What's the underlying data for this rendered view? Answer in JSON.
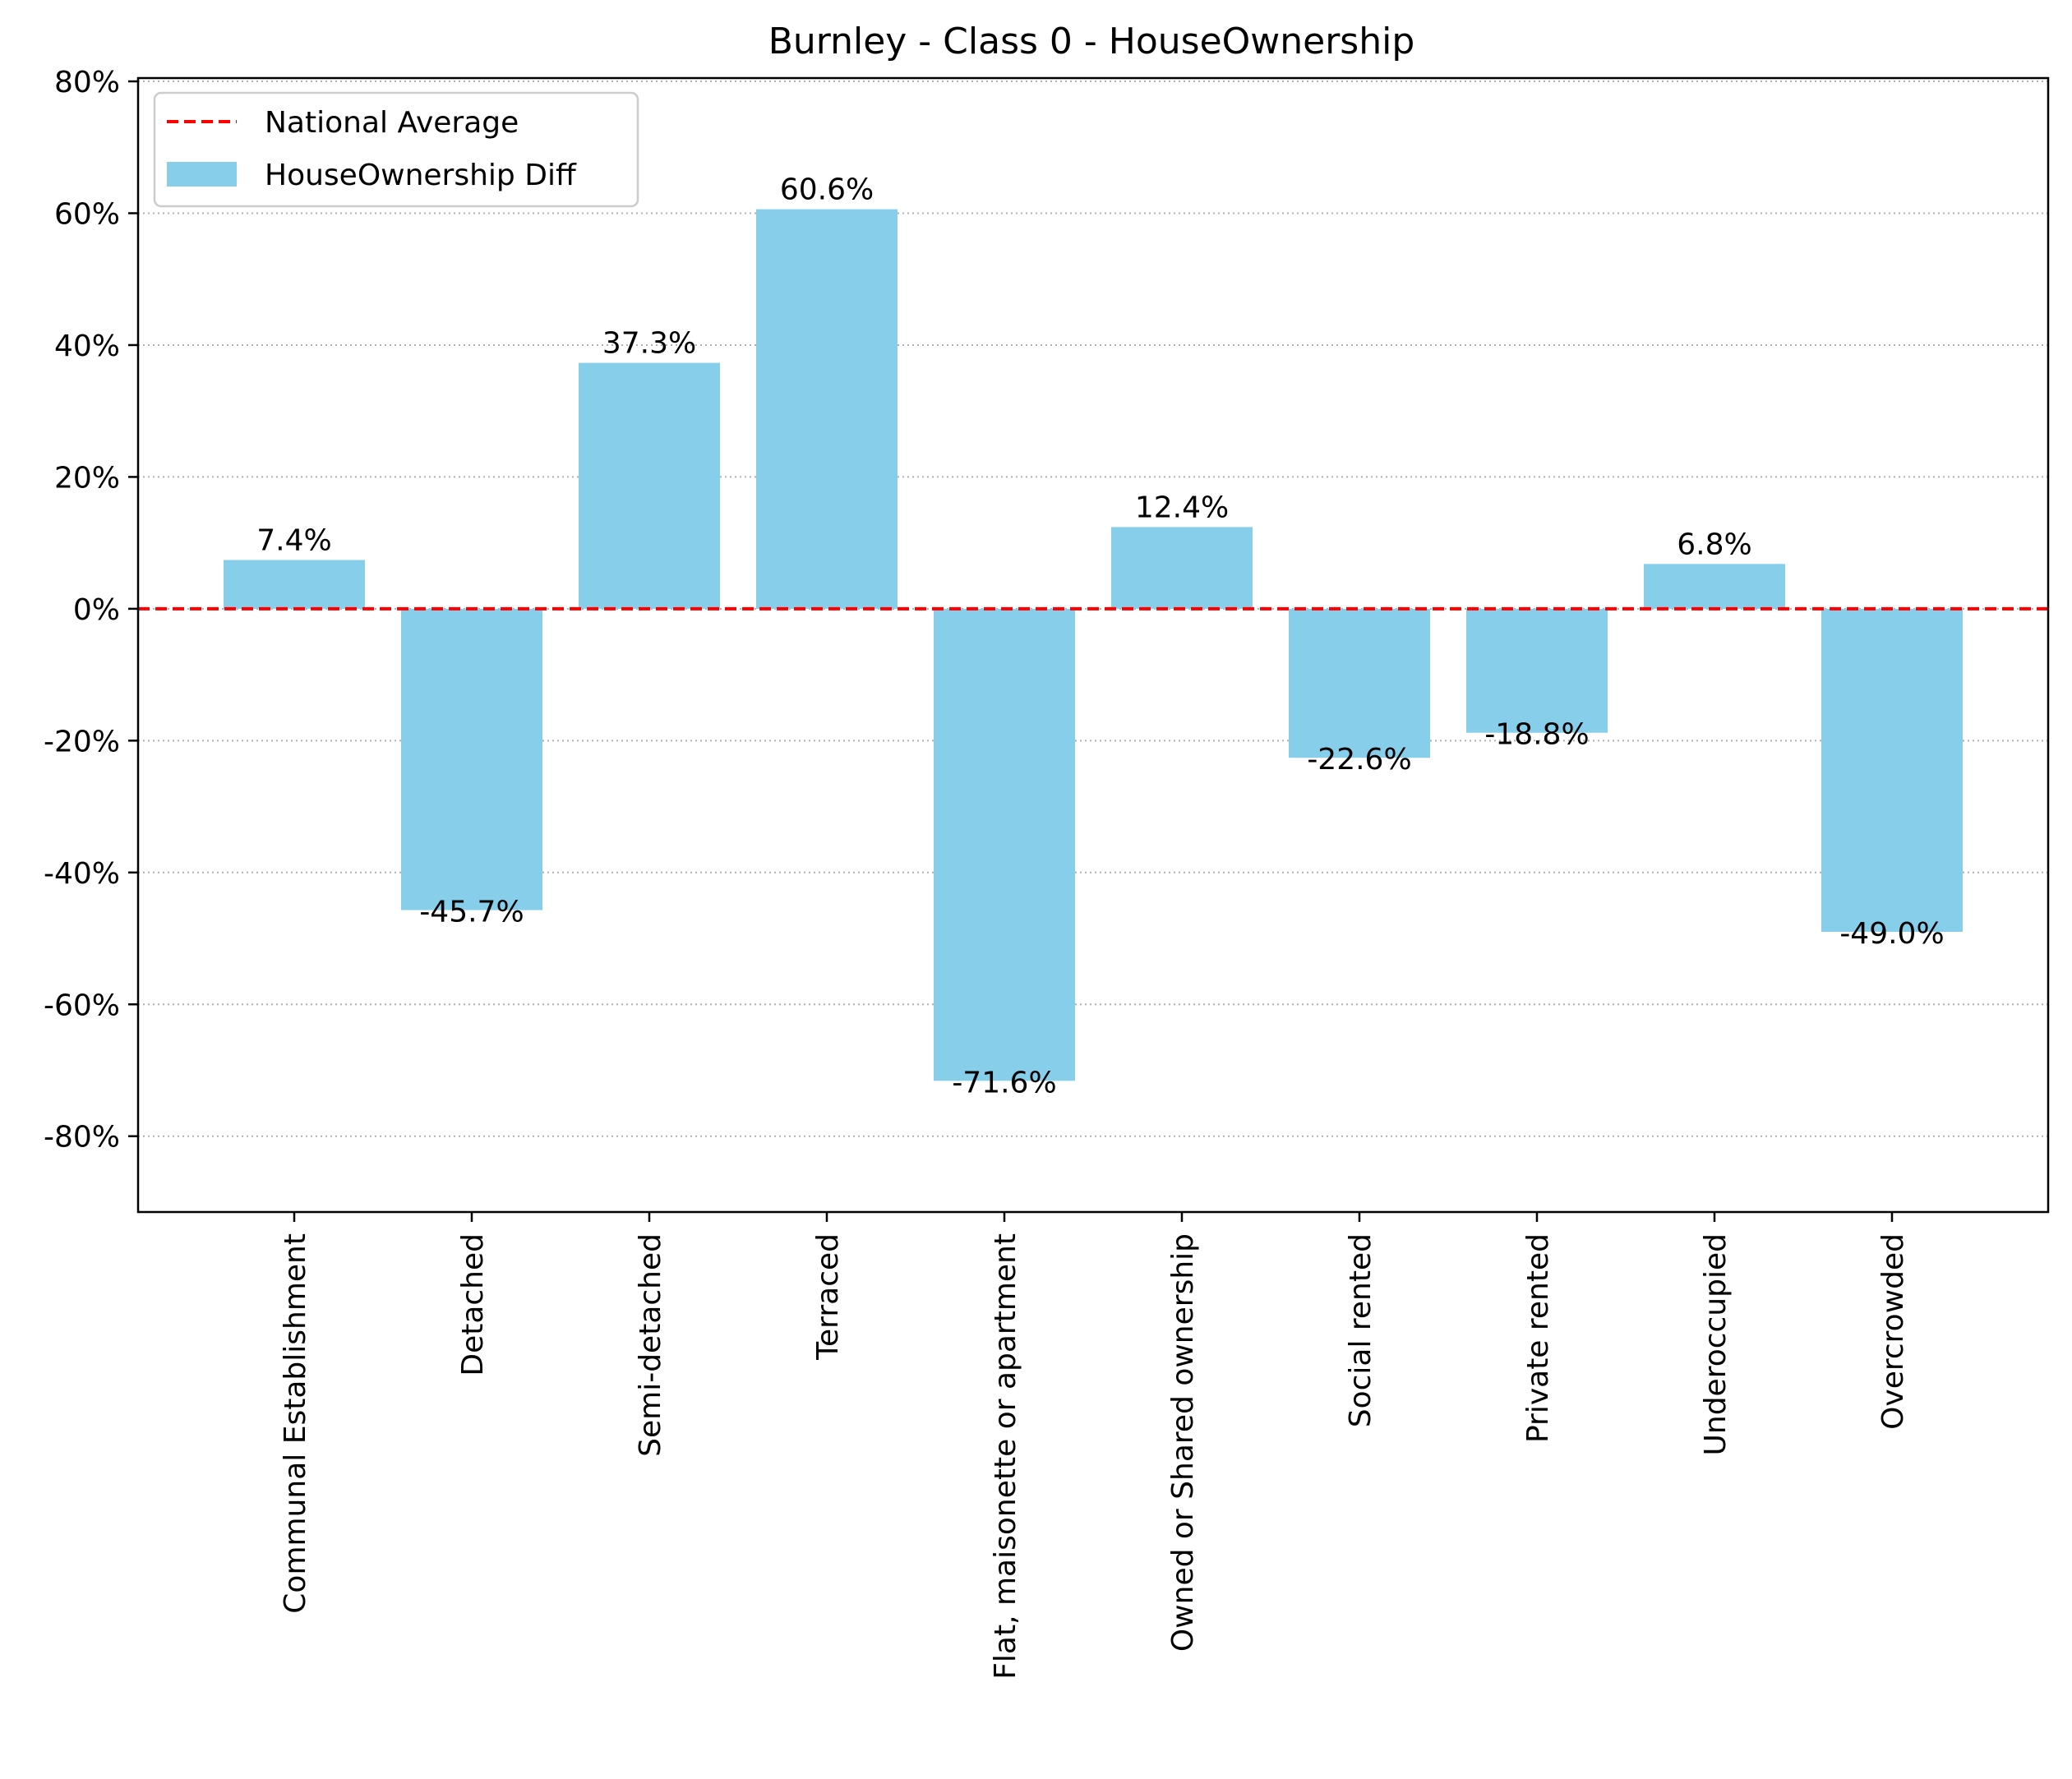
{
  "chart_data": {
    "type": "bar",
    "title": "Burnley - Class 0 - HouseOwnership",
    "xlabel": "",
    "ylabel": "",
    "categories": [
      "Communal Establishment",
      "Detached",
      "Semi-detached",
      "Terraced",
      "Flat, maisonette or apartment",
      "Owned or Shared ownership",
      "Social rented",
      "Private rented",
      "Underoccupied",
      "Overcrowded"
    ],
    "series": [
      {
        "name": "HouseOwnership Diff",
        "values": [
          7.4,
          -45.7,
          37.3,
          60.6,
          -71.6,
          12.4,
          -22.6,
          -18.8,
          6.8,
          -49.0
        ],
        "labels": [
          "7.4%",
          "-45.7%",
          "37.3%",
          "60.6%",
          "-71.6%",
          "12.4%",
          "-22.6%",
          "-18.8%",
          "6.8%",
          "-49.0%"
        ],
        "color": "#87CEEB"
      }
    ],
    "reference_line": {
      "name": "National Average",
      "value": 0,
      "color": "#FF0000",
      "style": "dashed"
    },
    "ylim": [
      -91.5,
      80.5
    ],
    "yticks": [
      -80,
      -60,
      -40,
      -20,
      0,
      20,
      40,
      60,
      80
    ],
    "ytick_labels": [
      "-80%",
      "-60%",
      "-40%",
      "-20%",
      "0%",
      "20%",
      "40%",
      "60%",
      "80%"
    ],
    "grid": {
      "axis": "y",
      "style": "dotted"
    },
    "legend": {
      "position": "top-left",
      "entries": [
        "National Average",
        "HouseOwnership Diff"
      ]
    }
  }
}
